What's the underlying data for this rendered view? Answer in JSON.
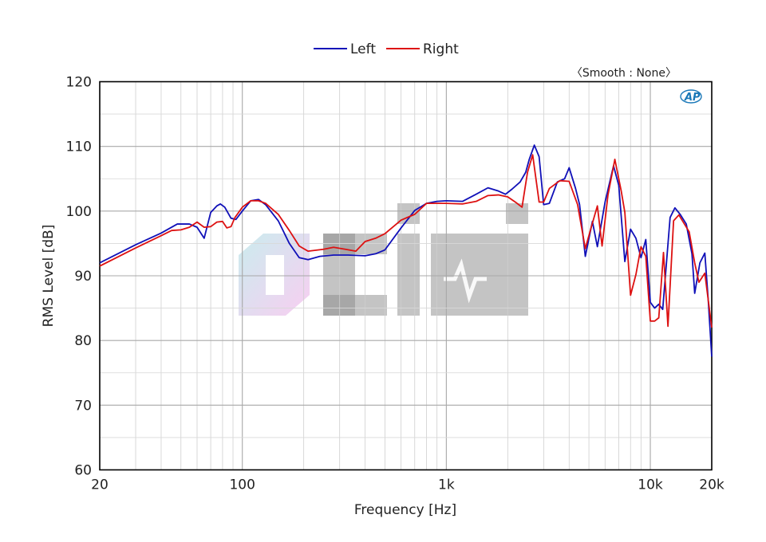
{
  "chart_data": {
    "type": "line",
    "xlabel": "Frequency [Hz]",
    "ylabel": "RMS Level [dB]",
    "xscale": "log",
    "xlim": [
      20,
      20000
    ],
    "ylim": [
      60,
      120
    ],
    "grid": true,
    "legend_position": "top-center",
    "annotation": "〈Smooth : None〉",
    "logo": "AP",
    "watermark": "OCIHI",
    "y_ticks": [
      {
        "value": 60,
        "label": "60"
      },
      {
        "value": 70,
        "label": "70"
      },
      {
        "value": 80,
        "label": "80"
      },
      {
        "value": 90,
        "label": "90"
      },
      {
        "value": 100,
        "label": "100"
      },
      {
        "value": 110,
        "label": "110"
      },
      {
        "value": 120,
        "label": "120"
      }
    ],
    "x_ticks": [
      {
        "value": 20,
        "label": "20"
      },
      {
        "value": 100,
        "label": "100"
      },
      {
        "value": 1000,
        "label": "1k"
      },
      {
        "value": 10000,
        "label": "10k"
      },
      {
        "value": 20000,
        "label": "20k"
      }
    ],
    "series": [
      {
        "name": "Left",
        "color": "#1010b8",
        "points": [
          [
            20,
            92
          ],
          [
            30,
            94.8
          ],
          [
            40,
            96.6
          ],
          [
            48,
            98
          ],
          [
            55,
            98
          ],
          [
            60,
            97.5
          ],
          [
            65,
            95.8
          ],
          [
            70,
            99.8
          ],
          [
            75,
            100.8
          ],
          [
            78,
            101.1
          ],
          [
            82,
            100.6
          ],
          [
            88,
            98.9
          ],
          [
            93,
            98.7
          ],
          [
            100,
            100
          ],
          [
            110,
            101.6
          ],
          [
            120,
            101.8
          ],
          [
            130,
            101
          ],
          [
            150,
            98.5
          ],
          [
            170,
            95
          ],
          [
            190,
            92.8
          ],
          [
            210,
            92.5
          ],
          [
            240,
            93
          ],
          [
            280,
            93.2
          ],
          [
            330,
            93.2
          ],
          [
            400,
            93.1
          ],
          [
            450,
            93.4
          ],
          [
            500,
            94
          ],
          [
            600,
            97.4
          ],
          [
            700,
            100.1
          ],
          [
            800,
            101.2
          ],
          [
            900,
            101.5
          ],
          [
            1000,
            101.6
          ],
          [
            1200,
            101.5
          ],
          [
            1400,
            102.6
          ],
          [
            1600,
            103.6
          ],
          [
            1800,
            103.1
          ],
          [
            1950,
            102.6
          ],
          [
            2100,
            103.4
          ],
          [
            2300,
            104.5
          ],
          [
            2450,
            106
          ],
          [
            2550,
            108
          ],
          [
            2700,
            110.2
          ],
          [
            2850,
            108.4
          ],
          [
            3000,
            101
          ],
          [
            3200,
            101.2
          ],
          [
            3500,
            104.5
          ],
          [
            3800,
            105
          ],
          [
            4000,
            106.7
          ],
          [
            4300,
            103.5
          ],
          [
            4500,
            101
          ],
          [
            4800,
            93
          ],
          [
            5200,
            98.4
          ],
          [
            5500,
            94.5
          ],
          [
            6000,
            101.4
          ],
          [
            6600,
            107
          ],
          [
            7000,
            104
          ],
          [
            7500,
            92.2
          ],
          [
            8000,
            97.2
          ],
          [
            8500,
            95.8
          ],
          [
            9000,
            92.8
          ],
          [
            9500,
            95.6
          ],
          [
            10000,
            85.9
          ],
          [
            10500,
            85
          ],
          [
            11000,
            85.6
          ],
          [
            11500,
            84.8
          ],
          [
            12500,
            99
          ],
          [
            13200,
            100.5
          ],
          [
            14000,
            99.5
          ],
          [
            15000,
            98
          ],
          [
            16000,
            93.4
          ],
          [
            16500,
            87.3
          ],
          [
            17500,
            92
          ],
          [
            18500,
            93.5
          ],
          [
            19200,
            86.5
          ],
          [
            20000,
            77.5
          ]
        ]
      },
      {
        "name": "Right",
        "color": "#dd1111",
        "points": [
          [
            20,
            91.5
          ],
          [
            30,
            94.3
          ],
          [
            40,
            96.2
          ],
          [
            45,
            97
          ],
          [
            50,
            97.1
          ],
          [
            55,
            97.5
          ],
          [
            60,
            98.3
          ],
          [
            65,
            97.5
          ],
          [
            70,
            97.6
          ],
          [
            75,
            98.3
          ],
          [
            80,
            98.4
          ],
          [
            84,
            97.4
          ],
          [
            88,
            97.6
          ],
          [
            92,
            99
          ],
          [
            100,
            100.6
          ],
          [
            110,
            101.6
          ],
          [
            120,
            101.6
          ],
          [
            130,
            101.2
          ],
          [
            150,
            99.5
          ],
          [
            170,
            97
          ],
          [
            190,
            94.6
          ],
          [
            210,
            93.8
          ],
          [
            250,
            94.1
          ],
          [
            280,
            94.4
          ],
          [
            320,
            94.1
          ],
          [
            360,
            93.8
          ],
          [
            400,
            95.3
          ],
          [
            450,
            95.8
          ],
          [
            500,
            96.5
          ],
          [
            600,
            98.6
          ],
          [
            700,
            99.5
          ],
          [
            800,
            101.2
          ],
          [
            900,
            101.2
          ],
          [
            1000,
            101.2
          ],
          [
            1200,
            101.1
          ],
          [
            1400,
            101.5
          ],
          [
            1600,
            102.4
          ],
          [
            1800,
            102.5
          ],
          [
            2000,
            102.2
          ],
          [
            2200,
            101.3
          ],
          [
            2350,
            100.6
          ],
          [
            2500,
            106
          ],
          [
            2650,
            108.7
          ],
          [
            2850,
            101.4
          ],
          [
            3000,
            101.4
          ],
          [
            3200,
            103.5
          ],
          [
            3600,
            104.7
          ],
          [
            4000,
            104.6
          ],
          [
            4400,
            101
          ],
          [
            4800,
            94.2
          ],
          [
            5100,
            97.2
          ],
          [
            5500,
            100.8
          ],
          [
            5800,
            94.6
          ],
          [
            6200,
            102.5
          ],
          [
            6700,
            108
          ],
          [
            7200,
            103.1
          ],
          [
            7500,
            99.8
          ],
          [
            8000,
            87
          ],
          [
            8500,
            90.2
          ],
          [
            9000,
            94.5
          ],
          [
            9500,
            93
          ],
          [
            10000,
            83
          ],
          [
            10500,
            83
          ],
          [
            11000,
            83.5
          ],
          [
            11600,
            93.6
          ],
          [
            12200,
            82.2
          ],
          [
            13000,
            98.5
          ],
          [
            13800,
            99.4
          ],
          [
            15500,
            96.8
          ],
          [
            16500,
            92
          ],
          [
            17300,
            89
          ],
          [
            18500,
            90.4
          ],
          [
            20000,
            82
          ]
        ]
      }
    ]
  }
}
